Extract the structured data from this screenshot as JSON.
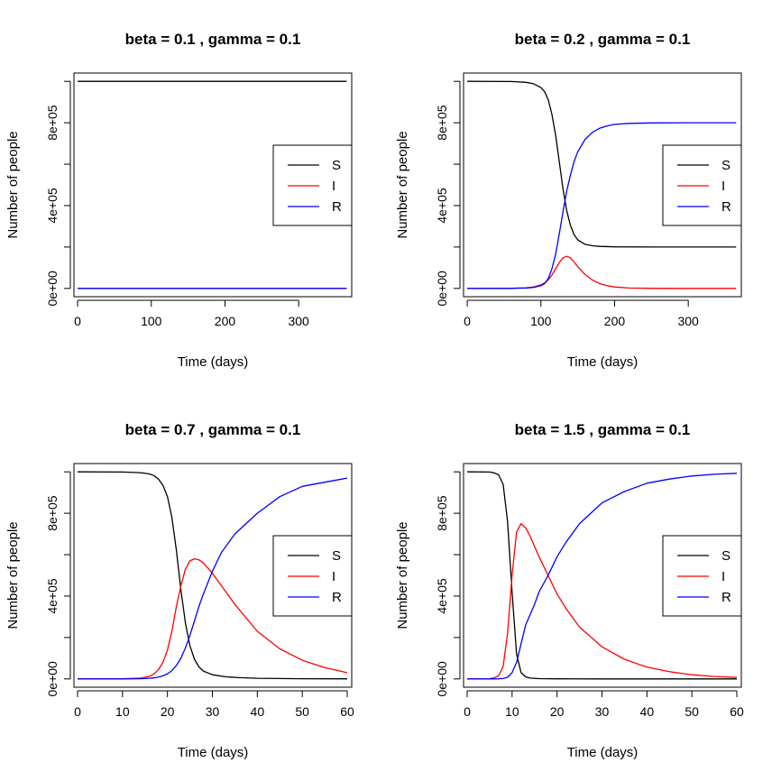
{
  "chart_data": [
    {
      "type": "line",
      "title": "beta = 0.1 , gamma = 0.1",
      "xlabel": "Time (days)",
      "ylabel": "Number of people",
      "xlim": [
        -5,
        372
      ],
      "ylim": [
        -40000,
        1040000
      ],
      "xticks": [
        0,
        100,
        200,
        300
      ],
      "xtick_labels": [
        "0",
        "100",
        "200",
        "300"
      ],
      "yticks": [
        0,
        200000,
        400000,
        600000,
        800000,
        1000000
      ],
      "ytick_labels": [
        "0e+00",
        "",
        "4e+05",
        "",
        "8e+05",
        ""
      ],
      "legend": {
        "placement": "right",
        "entries": [
          "S",
          "I",
          "R"
        ]
      },
      "grid": false,
      "series": [
        {
          "name": "S",
          "color": "#000000",
          "x": [
            0,
            365
          ],
          "y": [
            999999,
            999999
          ]
        },
        {
          "name": "I",
          "color": "#ff0000",
          "x": [
            0,
            365
          ],
          "y": [
            1,
            1
          ]
        },
        {
          "name": "R",
          "color": "#0000ff",
          "x": [
            0,
            365
          ],
          "y": [
            0,
            0
          ]
        }
      ]
    },
    {
      "type": "line",
      "title": "beta = 0.2 , gamma = 0.1",
      "xlabel": "Time (days)",
      "ylabel": "Number of people",
      "xlim": [
        -5,
        372
      ],
      "ylim": [
        -40000,
        1040000
      ],
      "xticks": [
        0,
        100,
        200,
        300
      ],
      "xtick_labels": [
        "0",
        "100",
        "200",
        "300"
      ],
      "yticks": [
        0,
        200000,
        400000,
        600000,
        800000,
        1000000
      ],
      "ytick_labels": [
        "0e+00",
        "",
        "4e+05",
        "",
        "8e+05",
        ""
      ],
      "legend": {
        "placement": "right",
        "entries": [
          "S",
          "I",
          "R"
        ]
      },
      "grid": false,
      "series": [
        {
          "name": "S",
          "color": "#000000",
          "x": [
            0,
            60,
            80,
            90,
            100,
            105,
            110,
            115,
            120,
            125,
            130,
            135,
            140,
            145,
            150,
            160,
            170,
            180,
            200,
            250,
            300,
            365
          ],
          "y": [
            1000000,
            999000,
            995000,
            988000,
            970000,
            950000,
            910000,
            840000,
            740000,
            610000,
            480000,
            375000,
            305000,
            260000,
            235000,
            213000,
            206000,
            203000,
            201000,
            200000,
            200000,
            200000
          ]
        },
        {
          "name": "I",
          "color": "#ff0000",
          "x": [
            0,
            60,
            80,
            90,
            100,
            105,
            110,
            115,
            120,
            125,
            130,
            135,
            140,
            145,
            150,
            160,
            170,
            180,
            190,
            200,
            220,
            250,
            300,
            365
          ],
          "y": [
            0,
            500,
            3000,
            7000,
            17000,
            27000,
            42000,
            65000,
            95000,
            125000,
            148000,
            155000,
            148000,
            128000,
            105000,
            67000,
            40000,
            23000,
            13000,
            7000,
            2000,
            500,
            0,
            0
          ]
        },
        {
          "name": "R",
          "color": "#0000ff",
          "x": [
            0,
            60,
            80,
            90,
            100,
            105,
            110,
            115,
            120,
            125,
            130,
            135,
            140,
            145,
            150,
            160,
            170,
            180,
            190,
            200,
            220,
            250,
            300,
            365
          ],
          "y": [
            0,
            500,
            2000,
            5000,
            13000,
            23000,
            48000,
            95000,
            165000,
            265000,
            372000,
            470000,
            547000,
            612000,
            660000,
            720000,
            754000,
            774000,
            785000,
            792000,
            797000,
            799000,
            800000,
            800000
          ]
        }
      ]
    },
    {
      "type": "line",
      "title": "beta = 0.7 , gamma = 0.1",
      "xlabel": "Time (days)",
      "ylabel": "Number of people",
      "xlim": [
        -0.8,
        61
      ],
      "ylim": [
        -40000,
        1040000
      ],
      "xticks": [
        0,
        10,
        20,
        30,
        40,
        50,
        60
      ],
      "xtick_labels": [
        "0",
        "10",
        "20",
        "30",
        "40",
        "50",
        "60"
      ],
      "yticks": [
        0,
        200000,
        400000,
        600000,
        800000,
        1000000
      ],
      "ytick_labels": [
        "0e+00",
        "",
        "4e+05",
        "",
        "8e+05",
        ""
      ],
      "legend": {
        "placement": "right",
        "entries": [
          "S",
          "I",
          "R"
        ]
      },
      "grid": false,
      "series": [
        {
          "name": "S",
          "color": "#000000",
          "x": [
            0,
            10,
            14,
            16,
            17,
            18,
            19,
            20,
            21,
            22,
            23,
            24,
            25,
            26,
            27,
            28,
            30,
            33,
            36,
            40,
            50,
            60
          ],
          "y": [
            1000000,
            999000,
            996000,
            990000,
            982000,
            965000,
            935000,
            880000,
            780000,
            620000,
            430000,
            270000,
            160000,
            95000,
            58000,
            38000,
            20000,
            10000,
            6000,
            3000,
            1000,
            500
          ]
        },
        {
          "name": "I",
          "color": "#ff0000",
          "x": [
            0,
            10,
            14,
            16,
            17,
            18,
            19,
            20,
            21,
            22,
            23,
            24,
            25,
            26,
            27,
            28,
            30,
            32,
            35,
            40,
            45,
            50,
            55,
            60
          ],
          "y": [
            0,
            1000,
            4000,
            12000,
            24000,
            45000,
            80000,
            140000,
            230000,
            350000,
            450000,
            530000,
            570000,
            580000,
            575000,
            560000,
            510000,
            450000,
            360000,
            230000,
            145000,
            90000,
            55000,
            30000
          ]
        },
        {
          "name": "R",
          "color": "#0000ff",
          "x": [
            0,
            10,
            14,
            16,
            17,
            18,
            19,
            20,
            21,
            22,
            23,
            24,
            25,
            26,
            27,
            28,
            30,
            32,
            35,
            40,
            45,
            50,
            55,
            60
          ],
          "y": [
            0,
            0,
            1000,
            3000,
            5000,
            9000,
            15000,
            25000,
            40000,
            65000,
            100000,
            150000,
            210000,
            280000,
            350000,
            410000,
            520000,
            610000,
            700000,
            800000,
            880000,
            930000,
            950000,
            970000
          ]
        }
      ]
    },
    {
      "type": "line",
      "title": "beta = 1.5 , gamma = 0.1",
      "xlabel": "Time (days)",
      "ylabel": "Number of people",
      "xlim": [
        -0.8,
        61
      ],
      "ylim": [
        -40000,
        1040000
      ],
      "xticks": [
        0,
        10,
        20,
        30,
        40,
        50,
        60
      ],
      "xtick_labels": [
        "0",
        "10",
        "20",
        "30",
        "40",
        "50",
        "60"
      ],
      "yticks": [
        0,
        200000,
        400000,
        600000,
        800000,
        1000000
      ],
      "ytick_labels": [
        "0e+00",
        "",
        "4e+05",
        "",
        "8e+05",
        ""
      ],
      "legend": {
        "placement": "right",
        "entries": [
          "S",
          "I",
          "R"
        ]
      },
      "grid": false,
      "series": [
        {
          "name": "S",
          "color": "#000000",
          "x": [
            0,
            5,
            6,
            7,
            8,
            9,
            10,
            11,
            12,
            13,
            14,
            16,
            20,
            30,
            60
          ],
          "y": [
            1000000,
            999000,
            995000,
            985000,
            940000,
            760000,
            420000,
            120000,
            30000,
            10000,
            4000,
            1500,
            500,
            200,
            100
          ]
        },
        {
          "name": "I",
          "color": "#ff0000",
          "x": [
            0,
            5,
            6,
            7,
            8,
            9,
            10,
            11,
            12,
            13,
            14,
            15,
            16,
            18,
            20,
            22,
            25,
            30,
            35,
            40,
            45,
            50,
            55,
            60
          ],
          "y": [
            0,
            1000,
            5000,
            15000,
            60000,
            220000,
            500000,
            710000,
            750000,
            730000,
            690000,
            640000,
            590000,
            500000,
            410000,
            340000,
            250000,
            155000,
            95000,
            57000,
            35000,
            20000,
            12000,
            7000
          ]
        },
        {
          "name": "R",
          "color": "#0000ff",
          "x": [
            0,
            5,
            6,
            7,
            8,
            9,
            10,
            11,
            12,
            13,
            14,
            15,
            16,
            18,
            20,
            22,
            25,
            30,
            35,
            40,
            45,
            50,
            55,
            60
          ],
          "y": [
            0,
            0,
            0,
            500,
            2000,
            8000,
            30000,
            80000,
            170000,
            260000,
            310000,
            360000,
            420000,
            500000,
            590000,
            660000,
            750000,
            850000,
            905000,
            945000,
            965000,
            980000,
            988000,
            993000
          ]
        }
      ]
    }
  ]
}
